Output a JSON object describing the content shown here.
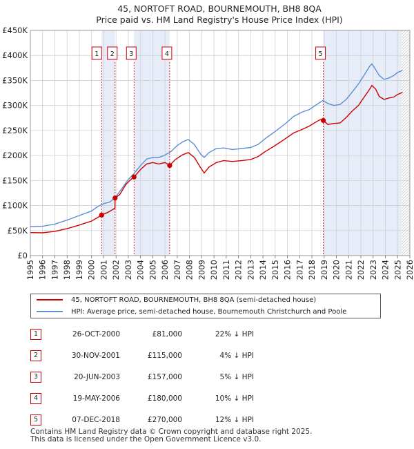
{
  "chart_data": {
    "type": "line",
    "title": "45, NORTOFT ROAD, BOURNEMOUTH, BH8 8QA",
    "subtitle": "Price paid vs. HM Land Registry's House Price Index (HPI)",
    "xlim": [
      1995,
      2026
    ],
    "ylim": [
      0,
      450000
    ],
    "x_ticks": [
      "1995",
      "1996",
      "1997",
      "1998",
      "1999",
      "2000",
      "2001",
      "2002",
      "2003",
      "2004",
      "2005",
      "2006",
      "2007",
      "2008",
      "2009",
      "2010",
      "2011",
      "2012",
      "2013",
      "2014",
      "2015",
      "2016",
      "2017",
      "2018",
      "2019",
      "2020",
      "2021",
      "2022",
      "2023",
      "2024",
      "2025",
      "2026"
    ],
    "y_ticks": [
      {
        "value": 0,
        "label": "£0"
      },
      {
        "value": 50000,
        "label": "£50K"
      },
      {
        "value": 100000,
        "label": "£100K"
      },
      {
        "value": 150000,
        "label": "£150K"
      },
      {
        "value": 200000,
        "label": "£200K"
      },
      {
        "value": 250000,
        "label": "£250K"
      },
      {
        "value": 300000,
        "label": "£300K"
      },
      {
        "value": 350000,
        "label": "£350K"
      },
      {
        "value": 400000,
        "label": "£400K"
      },
      {
        "value": 450000,
        "label": "£450K"
      }
    ],
    "shaded_spans": [
      [
        2000.82,
        2001.92
      ],
      [
        2003.47,
        2006.38
      ],
      [
        2018.93,
        2025.3
      ]
    ],
    "future_hatch_from": 2025.3,
    "series": [
      {
        "name": "45, NORTOFT ROAD, BOURNEMOUTH, BH8 8QA (semi-detached house)",
        "color": "#cc0000",
        "points": [
          [
            1995.0,
            46000
          ],
          [
            1996.0,
            45500
          ],
          [
            1997.0,
            48500
          ],
          [
            1998.0,
            54000
          ],
          [
            1999.0,
            61000
          ],
          [
            2000.0,
            69000
          ],
          [
            2000.5,
            76000
          ],
          [
            2000.82,
            81000
          ],
          [
            2001.3,
            86000
          ],
          [
            2001.8,
            93000
          ],
          [
            2001.91,
            95000
          ],
          [
            2001.92,
            115000
          ],
          [
            2002.3,
            122000
          ],
          [
            2002.8,
            142000
          ],
          [
            2003.2,
            152000
          ],
          [
            2003.47,
            157000
          ],
          [
            2004.0,
            172000
          ],
          [
            2004.5,
            183000
          ],
          [
            2005.0,
            186000
          ],
          [
            2005.5,
            183000
          ],
          [
            2006.0,
            186000
          ],
          [
            2006.38,
            180000
          ],
          [
            2006.8,
            191000
          ],
          [
            2007.4,
            201000
          ],
          [
            2007.9,
            206000
          ],
          [
            2008.4,
            196000
          ],
          [
            2008.9,
            176000
          ],
          [
            2009.2,
            165000
          ],
          [
            2009.6,
            177000
          ],
          [
            2010.2,
            186000
          ],
          [
            2010.8,
            190000
          ],
          [
            2011.5,
            188000
          ],
          [
            2012.3,
            190000
          ],
          [
            2013.0,
            192000
          ],
          [
            2013.6,
            198000
          ],
          [
            2014.2,
            208000
          ],
          [
            2015.0,
            220000
          ],
          [
            2015.8,
            233000
          ],
          [
            2016.5,
            245000
          ],
          [
            2017.2,
            252000
          ],
          [
            2017.8,
            259000
          ],
          [
            2018.4,
            268000
          ],
          [
            2018.7,
            272000
          ],
          [
            2018.93,
            270000
          ],
          [
            2019.3,
            262000
          ],
          [
            2019.8,
            264000
          ],
          [
            2020.3,
            265000
          ],
          [
            2020.8,
            276000
          ],
          [
            2021.3,
            289000
          ],
          [
            2021.8,
            300000
          ],
          [
            2022.3,
            318000
          ],
          [
            2022.7,
            332000
          ],
          [
            2022.9,
            340000
          ],
          [
            2023.2,
            333000
          ],
          [
            2023.5,
            318000
          ],
          [
            2023.9,
            312000
          ],
          [
            2024.3,
            315000
          ],
          [
            2024.7,
            317000
          ],
          [
            2025.0,
            322000
          ],
          [
            2025.4,
            326000
          ]
        ]
      },
      {
        "name": "HPI: Average price, semi-detached house, Bournemouth Christchurch and Poole",
        "color": "#5b8ed6",
        "points": [
          [
            1995.0,
            58000
          ],
          [
            1996.0,
            58500
          ],
          [
            1997.0,
            63000
          ],
          [
            1998.0,
            71000
          ],
          [
            1999.0,
            80000
          ],
          [
            2000.0,
            89000
          ],
          [
            2000.5,
            98000
          ],
          [
            2001.0,
            104000
          ],
          [
            2001.5,
            107000
          ],
          [
            2002.0,
            118000
          ],
          [
            2002.5,
            135000
          ],
          [
            2003.0,
            152000
          ],
          [
            2003.5,
            165000
          ],
          [
            2004.0,
            180000
          ],
          [
            2004.5,
            193000
          ],
          [
            2005.0,
            196000
          ],
          [
            2005.5,
            196000
          ],
          [
            2006.0,
            201000
          ],
          [
            2006.5,
            208000
          ],
          [
            2007.0,
            220000
          ],
          [
            2007.5,
            228000
          ],
          [
            2007.9,
            232000
          ],
          [
            2008.4,
            222000
          ],
          [
            2008.9,
            203000
          ],
          [
            2009.2,
            196000
          ],
          [
            2009.6,
            206000
          ],
          [
            2010.2,
            214000
          ],
          [
            2010.8,
            215000
          ],
          [
            2011.5,
            212000
          ],
          [
            2012.3,
            214000
          ],
          [
            2013.0,
            216000
          ],
          [
            2013.6,
            222000
          ],
          [
            2014.2,
            234000
          ],
          [
            2015.0,
            248000
          ],
          [
            2015.8,
            263000
          ],
          [
            2016.5,
            278000
          ],
          [
            2017.2,
            287000
          ],
          [
            2017.8,
            292000
          ],
          [
            2018.4,
            302000
          ],
          [
            2018.9,
            310000
          ],
          [
            2019.3,
            304000
          ],
          [
            2019.8,
            300000
          ],
          [
            2020.3,
            302000
          ],
          [
            2020.8,
            312000
          ],
          [
            2021.3,
            327000
          ],
          [
            2021.8,
            343000
          ],
          [
            2022.3,
            362000
          ],
          [
            2022.7,
            378000
          ],
          [
            2022.9,
            383000
          ],
          [
            2023.2,
            372000
          ],
          [
            2023.5,
            360000
          ],
          [
            2023.9,
            352000
          ],
          [
            2024.3,
            355000
          ],
          [
            2024.7,
            360000
          ],
          [
            2025.0,
            366000
          ],
          [
            2025.4,
            370000
          ]
        ]
      }
    ],
    "sales": [
      {
        "n": "1",
        "x": 2000.82,
        "price": 81000
      },
      {
        "n": "2",
        "x": 2001.92,
        "price": 115000
      },
      {
        "n": "3",
        "x": 2003.47,
        "price": 157000
      },
      {
        "n": "4",
        "x": 2006.38,
        "price": 180000
      },
      {
        "n": "5",
        "x": 2018.93,
        "price": 270000
      }
    ]
  },
  "legend": {
    "property_label": "45, NORTOFT ROAD, BOURNEMOUTH, BH8 8QA (semi-detached house)",
    "hpi_label": "HPI: Average price, semi-detached house, Bournemouth Christchurch and Poole"
  },
  "sales_table": [
    {
      "n": "1",
      "date": "26-OCT-2000",
      "price": "£81,000",
      "hpi": "22% ↓ HPI"
    },
    {
      "n": "2",
      "date": "30-NOV-2001",
      "price": "£115,000",
      "hpi": "4% ↓ HPI"
    },
    {
      "n": "3",
      "date": "20-JUN-2003",
      "price": "£157,000",
      "hpi": "5% ↓ HPI"
    },
    {
      "n": "4",
      "date": "19-MAY-2006",
      "price": "£180,000",
      "hpi": "10% ↓ HPI"
    },
    {
      "n": "5",
      "date": "07-DEC-2018",
      "price": "£270,000",
      "hpi": "12% ↓ HPI"
    }
  ],
  "footer": {
    "line1": "Contains HM Land Registry data © Crown copyright and database right 2025.",
    "line2": "This data is licensed under the Open Government Licence v3.0."
  }
}
